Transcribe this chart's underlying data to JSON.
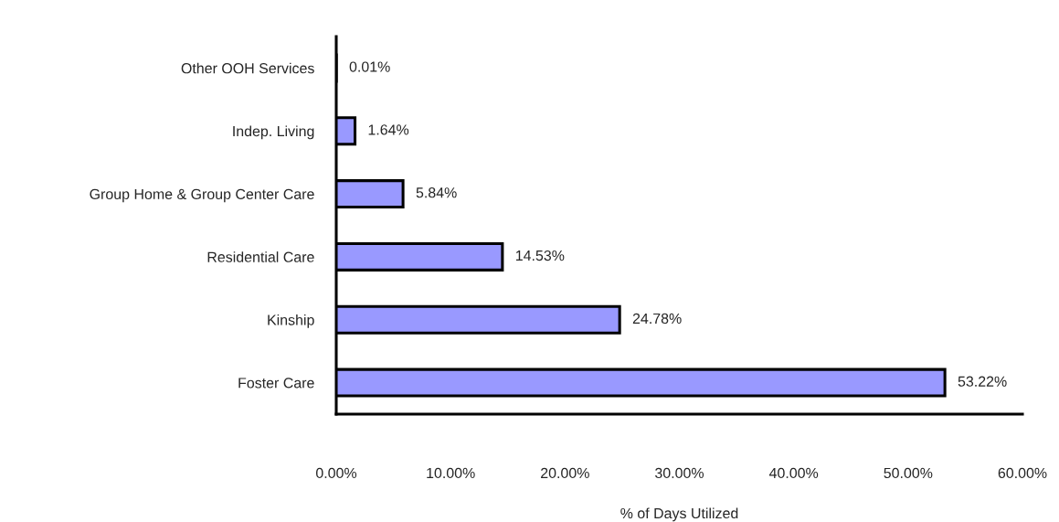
{
  "chart_data": {
    "type": "bar",
    "orientation": "horizontal",
    "categories": [
      "Other OOH Services",
      "Indep. Living",
      "Group Home & Group Center Care",
      "Residential Care",
      "Kinship",
      "Foster Care"
    ],
    "values": [
      0.01,
      1.64,
      5.84,
      14.53,
      24.78,
      53.22
    ],
    "value_labels": [
      "0.01%",
      "1.64%",
      "5.84%",
      "14.53%",
      "24.78%",
      "53.22%"
    ],
    "color": "#9999ff",
    "xlim": [
      0,
      60
    ],
    "xticks": [
      {
        "value": 0,
        "label": "0.00%"
      },
      {
        "value": 10,
        "label": "10.00%"
      },
      {
        "value": 20,
        "label": "20.00%"
      },
      {
        "value": 30,
        "label": "30.00%"
      },
      {
        "value": 40,
        "label": "40.00%"
      },
      {
        "value": 50,
        "label": "50.00%"
      },
      {
        "value": 60,
        "label": "60.00%"
      }
    ],
    "xlabel": "% of Days Utilized"
  }
}
